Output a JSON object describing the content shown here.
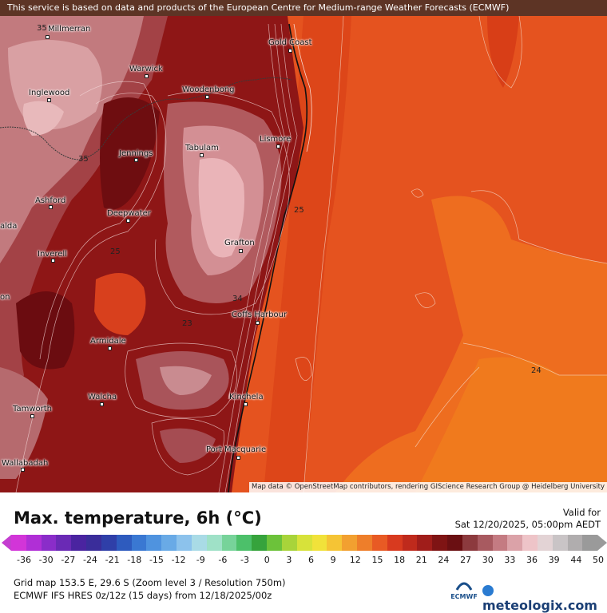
{
  "banner": "This service is based on data and products of the European Centre for Medium-range Weather Forecasts (ECMWF)",
  "towns": [
    "Millmerran",
    "Gold Coast",
    "Warwick",
    "Woodenbong",
    "Inglewood",
    "Lismore",
    "Tabulam",
    "Jennings",
    "Ashford",
    "Deepwater",
    "Grafton",
    "Inverell",
    "Coffs Harbour",
    "Armidale",
    "Walcha",
    "Kinchela",
    "Tamworth",
    "Port Macquarie",
    "Wallabadah",
    "alda",
    "on"
  ],
  "isolabels": [
    "35",
    "35",
    "25",
    "25",
    "34",
    "23",
    "24"
  ],
  "attribution": "Map data © OpenStreetMap contributors, rendering GIScience Research Group @ Heidelberg University",
  "legend": {
    "title": "Max. temperature, 6h (°C)",
    "valid_label": "Valid for",
    "valid_time": "Sat 12/20/2025, 05:00pm AEDT",
    "ticks": [
      "-36",
      "-30",
      "-27",
      "-24",
      "-21",
      "-18",
      "-15",
      "-12",
      "-9",
      "-6",
      "-3",
      "0",
      "3",
      "6",
      "9",
      "12",
      "15",
      "18",
      "21",
      "24",
      "27",
      "30",
      "33",
      "36",
      "39",
      "44",
      "50"
    ],
    "colors": [
      "#d235d8",
      "#b02fd6",
      "#8a2dc9",
      "#6a2ab5",
      "#4a24a0",
      "#3a2d9a",
      "#2f3fa8",
      "#2e5bbe",
      "#3a78d2",
      "#4f93df",
      "#69aae6",
      "#8cc2ec",
      "#a9dbe6",
      "#9fe1c7",
      "#77d39a",
      "#4cc06a",
      "#36a33c",
      "#6cc23a",
      "#a8d43a",
      "#d7e23a",
      "#f1e23a",
      "#f5c435",
      "#f2a030",
      "#ee7e2a",
      "#e85a24",
      "#d83a1f",
      "#bf2a1c",
      "#a01d1a",
      "#7f1414",
      "#6a0f12",
      "#8c3a3e",
      "#a85a60",
      "#c47b82",
      "#dba2a8",
      "#eec4c8",
      "#e3d3d5",
      "#c9c4c6",
      "#b0adae",
      "#9a9a9a"
    ],
    "grid_text": "Grid map 153.5 E, 29.6 S (Zoom level 3 / Resolution 750m)",
    "model_text": "ECMWF IFS HRES 0z/12z (15 days) from  12/18/2025/00z",
    "ecmwf_logo": "ECMWF",
    "brand": "meteologix.com"
  }
}
